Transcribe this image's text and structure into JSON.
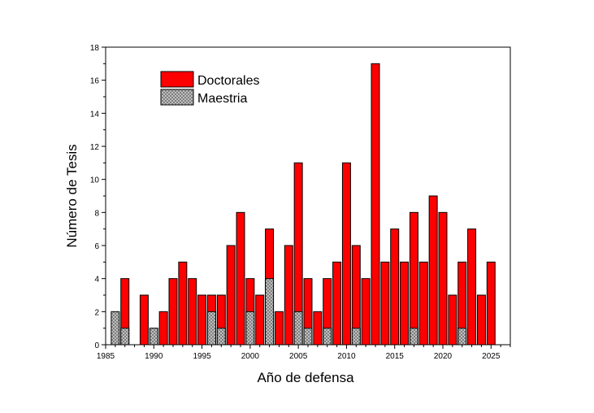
{
  "chart_data": {
    "type": "bar",
    "xlabel": "Año de defensa",
    "ylabel": "Número de Tesis",
    "xlim": [
      1985,
      2027
    ],
    "ylim": [
      0,
      18
    ],
    "x_ticks": [
      1985,
      1990,
      1995,
      2000,
      2005,
      2010,
      2015,
      2020,
      2025
    ],
    "y_ticks": [
      0,
      2,
      4,
      6,
      8,
      10,
      12,
      14,
      16,
      18
    ],
    "legend_position": "top-left",
    "grid": false,
    "colors": {
      "doctorales": "#ff0000",
      "maestria": "#c8c8c8",
      "outline": "#000000"
    },
    "series": [
      {
        "name": "Doctorales",
        "points": [
          [
            1987,
            4
          ],
          [
            1989,
            3
          ],
          [
            1991,
            2
          ],
          [
            1992,
            4
          ],
          [
            1993,
            5
          ],
          [
            1994,
            4
          ],
          [
            1995,
            3
          ],
          [
            1996,
            3
          ],
          [
            1997,
            3
          ],
          [
            1998,
            6
          ],
          [
            1999,
            8
          ],
          [
            2000,
            4
          ],
          [
            2001,
            3
          ],
          [
            2002,
            7
          ],
          [
            2003,
            2
          ],
          [
            2004,
            6
          ],
          [
            2005,
            11
          ],
          [
            2006,
            4
          ],
          [
            2007,
            2
          ],
          [
            2008,
            4
          ],
          [
            2009,
            5
          ],
          [
            2010,
            11
          ],
          [
            2011,
            6
          ],
          [
            2012,
            4
          ],
          [
            2013,
            17
          ],
          [
            2014,
            5
          ],
          [
            2015,
            7
          ],
          [
            2016,
            5
          ],
          [
            2017,
            8
          ],
          [
            2018,
            5
          ],
          [
            2019,
            9
          ],
          [
            2020,
            8
          ],
          [
            2021,
            3
          ],
          [
            2022,
            5
          ],
          [
            2023,
            7
          ],
          [
            2024,
            3
          ],
          [
            2025,
            5
          ]
        ]
      },
      {
        "name": "Maestria",
        "points": [
          [
            1986,
            2
          ],
          [
            1987,
            1
          ],
          [
            1990,
            1
          ],
          [
            1996,
            2
          ],
          [
            1997,
            1
          ],
          [
            2000,
            2
          ],
          [
            2002,
            4
          ],
          [
            2005,
            2
          ],
          [
            2006,
            1
          ],
          [
            2008,
            1
          ],
          [
            2011,
            1
          ],
          [
            2017,
            1
          ],
          [
            2022,
            1
          ]
        ]
      }
    ]
  }
}
